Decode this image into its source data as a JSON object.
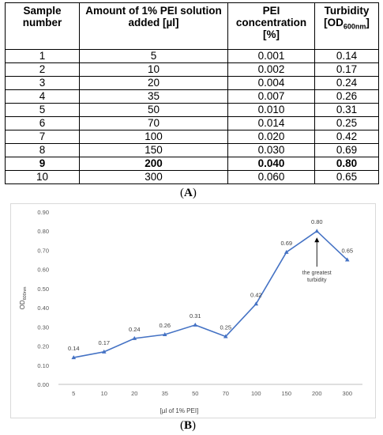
{
  "table": {
    "headers": {
      "sample": "Sample number",
      "amount": "Amount of 1% PEI solution added [µl]",
      "concentration": "PEI concentration [%]",
      "turbidity_main": "Turbidity [OD",
      "turbidity_sub": "600nm",
      "turbidity_end": "]"
    },
    "rows": [
      [
        "1",
        "5",
        "0.001",
        "0.14"
      ],
      [
        "2",
        "10",
        "0.002",
        "0.17"
      ],
      [
        "3",
        "20",
        "0.004",
        "0.24"
      ],
      [
        "4",
        "35",
        "0.007",
        "0.26"
      ],
      [
        "5",
        "50",
        "0.010",
        "0.31"
      ],
      [
        "6",
        "70",
        "0.014",
        "0.25"
      ],
      [
        "7",
        "100",
        "0.020",
        "0.42"
      ],
      [
        "8",
        "150",
        "0.030",
        "0.69"
      ],
      [
        "9",
        "200",
        "0.040",
        "0.80"
      ],
      [
        "10",
        "300",
        "0.060",
        "0.65"
      ]
    ],
    "bold_row_index": 8
  },
  "labels": {
    "panel_a": "(A)",
    "panel_b": "(B)",
    "panel_a_letter": "A",
    "panel_b_letter": "B"
  },
  "chart_data": {
    "type": "line",
    "categories": [
      "5",
      "10",
      "20",
      "35",
      "50",
      "70",
      "100",
      "150",
      "200",
      "300"
    ],
    "series": [
      {
        "values": [
          0.14,
          0.17,
          0.24,
          0.26,
          0.31,
          0.25,
          0.42,
          0.69,
          0.8,
          0.65
        ],
        "color": "#4472c4"
      }
    ],
    "data_labels": [
      "0.14",
      "0.17",
      "0.24",
      "0.26",
      "0.31",
      "0.25",
      "0.42",
      "0.69",
      "0.80",
      "0.65"
    ],
    "ylim": [
      0,
      0.9
    ],
    "yticks": [
      "0.00",
      "0.10",
      "0.20",
      "0.30",
      "0.40",
      "0.50",
      "0.60",
      "0.70",
      "0.80",
      "0.90"
    ],
    "ylabel_main": "OD",
    "ylabel_sub": "600nm",
    "xlabel": "[µl of 1% PEI]",
    "grid": false,
    "annotation": {
      "text_line1": "the greatest",
      "text_line2": "turbidity",
      "target_category": "200"
    }
  }
}
